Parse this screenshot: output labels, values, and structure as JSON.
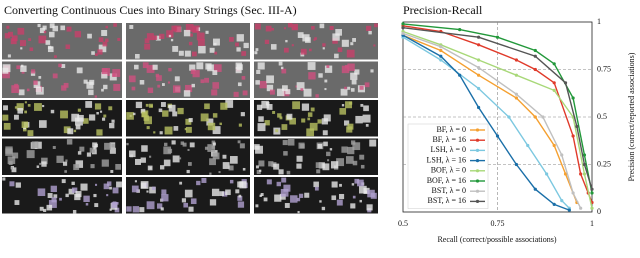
{
  "image_panel": {
    "title": "Converting Continuous Cues into Binary Strings (Sec. III-A)"
  },
  "chart_data": {
    "type": "line",
    "title": "Precision-Recall",
    "x_label": "Recall (correct/possible associations)",
    "y_label": "Precision (correct/reported associations)",
    "xlim": [
      0.5,
      1
    ],
    "xticks": [
      0.5,
      0.75,
      1
    ],
    "ylim": [
      0,
      1
    ],
    "yticks": [
      0,
      0.25,
      0.5,
      0.75,
      1
    ],
    "grid": true,
    "legend": "lower left",
    "series": [
      {
        "name": "BF, λ = 0",
        "color": "#f5a030",
        "x": [
          0.5,
          0.6,
          0.7,
          0.8,
          0.85,
          0.9,
          0.93,
          0.96
        ],
        "values": [
          0.93,
          0.85,
          0.72,
          0.6,
          0.5,
          0.35,
          0.2,
          0.05
        ]
      },
      {
        "name": "BF, λ = 16",
        "color": "#e03a2a",
        "x": [
          0.5,
          0.6,
          0.7,
          0.8,
          0.85,
          0.9,
          0.95,
          0.97,
          0.99,
          1
        ],
        "values": [
          0.98,
          0.95,
          0.88,
          0.8,
          0.75,
          0.68,
          0.4,
          0.2,
          0.1,
          0.05
        ]
      },
      {
        "name": "LSH, λ = 0",
        "color": "#7cc8e0",
        "x": [
          0.5,
          0.6,
          0.7,
          0.78,
          0.83,
          0.88,
          0.92,
          0.94
        ],
        "values": [
          0.92,
          0.8,
          0.65,
          0.5,
          0.35,
          0.2,
          0.06,
          0.02
        ]
      },
      {
        "name": "LSH, λ = 16",
        "color": "#1a6fa8",
        "x": [
          0.5,
          0.6,
          0.65,
          0.7,
          0.75,
          0.8,
          0.85,
          0.9,
          0.94
        ],
        "values": [
          0.93,
          0.82,
          0.72,
          0.55,
          0.4,
          0.25,
          0.12,
          0.04,
          0.01
        ]
      },
      {
        "name": "BOF, λ = 0",
        "color": "#a8d878",
        "x": [
          0.5,
          0.6,
          0.7,
          0.8,
          0.9,
          0.95,
          0.98,
          1
        ],
        "values": [
          0.95,
          0.88,
          0.8,
          0.72,
          0.64,
          0.5,
          0.2,
          0.02
        ]
      },
      {
        "name": "BOF, λ = 16",
        "color": "#22983a",
        "x": [
          0.5,
          0.65,
          0.75,
          0.85,
          0.9,
          0.95,
          0.98,
          1
        ],
        "values": [
          0.99,
          0.96,
          0.92,
          0.85,
          0.78,
          0.6,
          0.3,
          0.1
        ]
      },
      {
        "name": "BST, λ = 0",
        "color": "#c0c0c0",
        "x": [
          0.5,
          0.6,
          0.7,
          0.8,
          0.87,
          0.92,
          0.95,
          0.97
        ],
        "values": [
          0.94,
          0.87,
          0.76,
          0.62,
          0.5,
          0.3,
          0.1,
          0.02
        ]
      },
      {
        "name": "BST, λ = 16",
        "color": "#555555",
        "x": [
          0.5,
          0.7,
          0.85,
          0.93,
          0.96,
          0.98,
          1
        ],
        "values": [
          0.97,
          0.92,
          0.82,
          0.68,
          0.45,
          0.25,
          0.12
        ]
      }
    ]
  }
}
